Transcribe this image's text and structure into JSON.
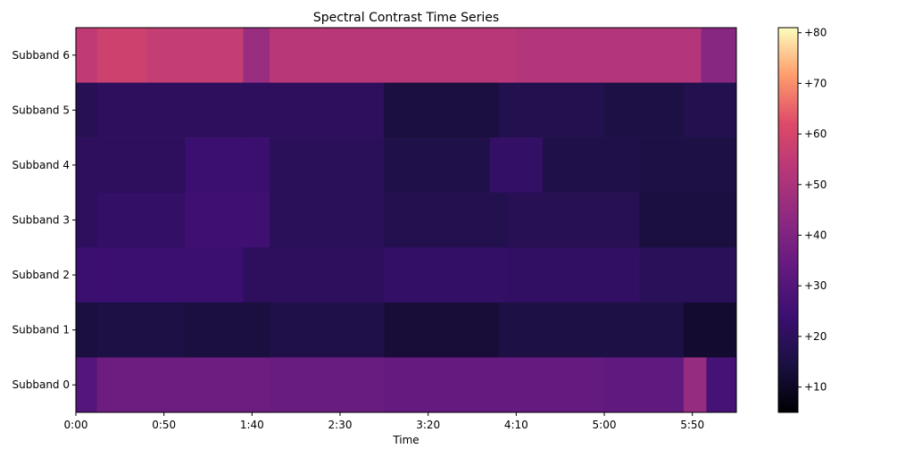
{
  "chart_data": {
    "type": "heatmap",
    "title": "Spectral Contrast Time Series",
    "xlabel": "Time",
    "ylabel": "",
    "x_range_seconds": [
      0,
      375
    ],
    "x_ticks": [
      {
        "value": 0,
        "label": "0:00"
      },
      {
        "value": 50,
        "label": "0:50"
      },
      {
        "value": 100,
        "label": "1:40"
      },
      {
        "value": 150,
        "label": "2:30"
      },
      {
        "value": 200,
        "label": "3:20"
      },
      {
        "value": 250,
        "label": "4:10"
      },
      {
        "value": 300,
        "label": "5:00"
      },
      {
        "value": 350,
        "label": "5:50"
      }
    ],
    "rows": [
      "Subband 0",
      "Subband 1",
      "Subband 2",
      "Subband 3",
      "Subband 4",
      "Subband 5",
      "Subband 6"
    ],
    "colormap": "magma",
    "colorbar": {
      "range": [
        5,
        81
      ],
      "ticks": [
        {
          "value": 10,
          "label": "+10"
        },
        {
          "value": 20,
          "label": "+20"
        },
        {
          "value": 30,
          "label": "+30"
        },
        {
          "value": 40,
          "label": "+40"
        },
        {
          "value": 50,
          "label": "+50"
        },
        {
          "value": 60,
          "label": "+60"
        },
        {
          "value": 70,
          "label": "+70"
        },
        {
          "value": 80,
          "label": "+80"
        }
      ]
    },
    "segments": [
      {
        "row": "Subband 6",
        "values": [
          [
            0,
            12,
            55
          ],
          [
            12,
            40,
            58
          ],
          [
            40,
            95,
            56
          ],
          [
            95,
            110,
            46
          ],
          [
            110,
            250,
            53
          ],
          [
            250,
            300,
            52
          ],
          [
            300,
            355,
            52
          ],
          [
            355,
            375,
            42
          ]
        ]
      },
      {
        "row": "Subband 5",
        "values": [
          [
            0,
            12,
            18
          ],
          [
            12,
            95,
            20
          ],
          [
            95,
            175,
            20
          ],
          [
            175,
            240,
            14
          ],
          [
            240,
            300,
            17
          ],
          [
            300,
            345,
            15
          ],
          [
            345,
            375,
            17
          ]
        ]
      },
      {
        "row": "Subband 4",
        "values": [
          [
            0,
            12,
            20
          ],
          [
            12,
            62,
            20
          ],
          [
            62,
            110,
            24
          ],
          [
            110,
            175,
            19
          ],
          [
            175,
            235,
            16
          ],
          [
            235,
            265,
            22
          ],
          [
            265,
            320,
            16
          ],
          [
            320,
            375,
            15
          ]
        ]
      },
      {
        "row": "Subband 3",
        "values": [
          [
            0,
            12,
            20
          ],
          [
            12,
            62,
            22
          ],
          [
            62,
            110,
            25
          ],
          [
            110,
            175,
            19
          ],
          [
            175,
            245,
            17
          ],
          [
            245,
            320,
            18
          ],
          [
            320,
            375,
            14
          ]
        ]
      },
      {
        "row": "Subband 2",
        "values": [
          [
            0,
            12,
            24
          ],
          [
            12,
            95,
            24
          ],
          [
            95,
            175,
            20
          ],
          [
            175,
            245,
            22
          ],
          [
            245,
            320,
            21
          ],
          [
            320,
            375,
            19
          ]
        ]
      },
      {
        "row": "Subband 1",
        "values": [
          [
            0,
            12,
            14
          ],
          [
            12,
            62,
            15
          ],
          [
            62,
            110,
            14
          ],
          [
            110,
            175,
            16
          ],
          [
            175,
            240,
            13
          ],
          [
            240,
            345,
            15
          ],
          [
            345,
            375,
            12
          ]
        ]
      },
      {
        "row": "Subband 0",
        "values": [
          [
            0,
            12,
            30
          ],
          [
            12,
            110,
            36
          ],
          [
            110,
            175,
            35
          ],
          [
            175,
            300,
            34
          ],
          [
            300,
            345,
            33
          ],
          [
            345,
            358,
            45
          ],
          [
            358,
            375,
            27
          ]
        ]
      }
    ]
  }
}
